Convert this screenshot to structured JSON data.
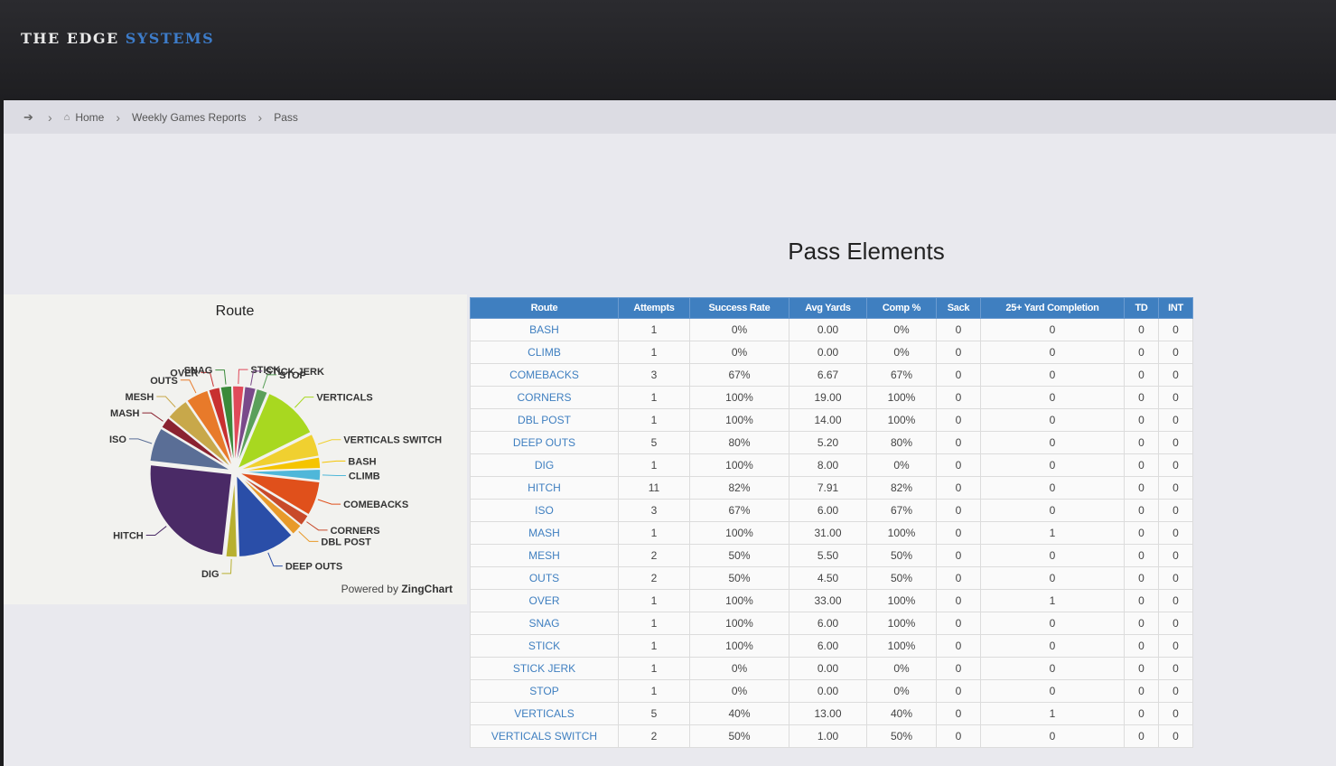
{
  "header": {
    "brand_part1": "THE EDGE",
    "brand_part2": "SYSTEMS"
  },
  "breadcrumb": {
    "home": "Home",
    "reports": "Weekly Games Reports",
    "current": "Pass"
  },
  "page": {
    "title": "Pass Elements"
  },
  "chart": {
    "powered_prefix": "Powered by",
    "powered_brand": "ZingChart"
  },
  "chart_data": {
    "type": "pie",
    "title": "Route",
    "series": [
      {
        "name": "BASH",
        "value": 1,
        "color": "#f5c400"
      },
      {
        "name": "CLIMB",
        "value": 1,
        "color": "#4fb7d9"
      },
      {
        "name": "COMEBACKS",
        "value": 3,
        "color": "#e0501b"
      },
      {
        "name": "CORNERS",
        "value": 1,
        "color": "#c84a2a"
      },
      {
        "name": "DBL POST",
        "value": 1,
        "color": "#e89a2a"
      },
      {
        "name": "DEEP OUTS",
        "value": 5,
        "color": "#2a4ea8"
      },
      {
        "name": "DIG",
        "value": 1,
        "color": "#b8b030"
      },
      {
        "name": "HITCH",
        "value": 11,
        "color": "#4a2a66"
      },
      {
        "name": "ISO",
        "value": 3,
        "color": "#5a6e96"
      },
      {
        "name": "MASH",
        "value": 1,
        "color": "#8a2230"
      },
      {
        "name": "MESH",
        "value": 2,
        "color": "#c8a84a"
      },
      {
        "name": "OUTS",
        "value": 2,
        "color": "#e87a2a"
      },
      {
        "name": "OVER",
        "value": 1,
        "color": "#c83030"
      },
      {
        "name": "SNAG",
        "value": 1,
        "color": "#3a8a3a"
      },
      {
        "name": "STICK",
        "value": 1,
        "color": "#e04a5a"
      },
      {
        "name": "STICK JERK",
        "value": 1,
        "color": "#7a4a8a"
      },
      {
        "name": "STOP",
        "value": 1,
        "color": "#5aa05a"
      },
      {
        "name": "VERTICALS",
        "value": 5,
        "color": "#a8d820"
      },
      {
        "name": "VERTICALS SWITCH",
        "value": 2,
        "color": "#f0d030"
      }
    ]
  },
  "table": {
    "headers": [
      "Route",
      "Attempts",
      "Success Rate",
      "Avg Yards",
      "Comp %",
      "Sack",
      "25+ Yard Completion",
      "TD",
      "INT"
    ],
    "rows": [
      [
        "BASH",
        "1",
        "0%",
        "0.00",
        "0%",
        "0",
        "0",
        "0",
        "0"
      ],
      [
        "CLIMB",
        "1",
        "0%",
        "0.00",
        "0%",
        "0",
        "0",
        "0",
        "0"
      ],
      [
        "COMEBACKS",
        "3",
        "67%",
        "6.67",
        "67%",
        "0",
        "0",
        "0",
        "0"
      ],
      [
        "CORNERS",
        "1",
        "100%",
        "19.00",
        "100%",
        "0",
        "0",
        "0",
        "0"
      ],
      [
        "DBL POST",
        "1",
        "100%",
        "14.00",
        "100%",
        "0",
        "0",
        "0",
        "0"
      ],
      [
        "DEEP OUTS",
        "5",
        "80%",
        "5.20",
        "80%",
        "0",
        "0",
        "0",
        "0"
      ],
      [
        "DIG",
        "1",
        "100%",
        "8.00",
        "0%",
        "0",
        "0",
        "0",
        "0"
      ],
      [
        "HITCH",
        "11",
        "82%",
        "7.91",
        "82%",
        "0",
        "0",
        "0",
        "0"
      ],
      [
        "ISO",
        "3",
        "67%",
        "6.00",
        "67%",
        "0",
        "0",
        "0",
        "0"
      ],
      [
        "MASH",
        "1",
        "100%",
        "31.00",
        "100%",
        "0",
        "1",
        "0",
        "0"
      ],
      [
        "MESH",
        "2",
        "50%",
        "5.50",
        "50%",
        "0",
        "0",
        "0",
        "0"
      ],
      [
        "OUTS",
        "2",
        "50%",
        "4.50",
        "50%",
        "0",
        "0",
        "0",
        "0"
      ],
      [
        "OVER",
        "1",
        "100%",
        "33.00",
        "100%",
        "0",
        "1",
        "0",
        "0"
      ],
      [
        "SNAG",
        "1",
        "100%",
        "6.00",
        "100%",
        "0",
        "0",
        "0",
        "0"
      ],
      [
        "STICK",
        "1",
        "100%",
        "6.00",
        "100%",
        "0",
        "0",
        "0",
        "0"
      ],
      [
        "STICK JERK",
        "1",
        "0%",
        "0.00",
        "0%",
        "0",
        "0",
        "0",
        "0"
      ],
      [
        "STOP",
        "1",
        "0%",
        "0.00",
        "0%",
        "0",
        "0",
        "0",
        "0"
      ],
      [
        "VERTICALS",
        "5",
        "40%",
        "13.00",
        "40%",
        "0",
        "1",
        "0",
        "0"
      ],
      [
        "VERTICALS SWITCH",
        "2",
        "50%",
        "1.00",
        "50%",
        "0",
        "0",
        "0",
        "0"
      ]
    ]
  }
}
